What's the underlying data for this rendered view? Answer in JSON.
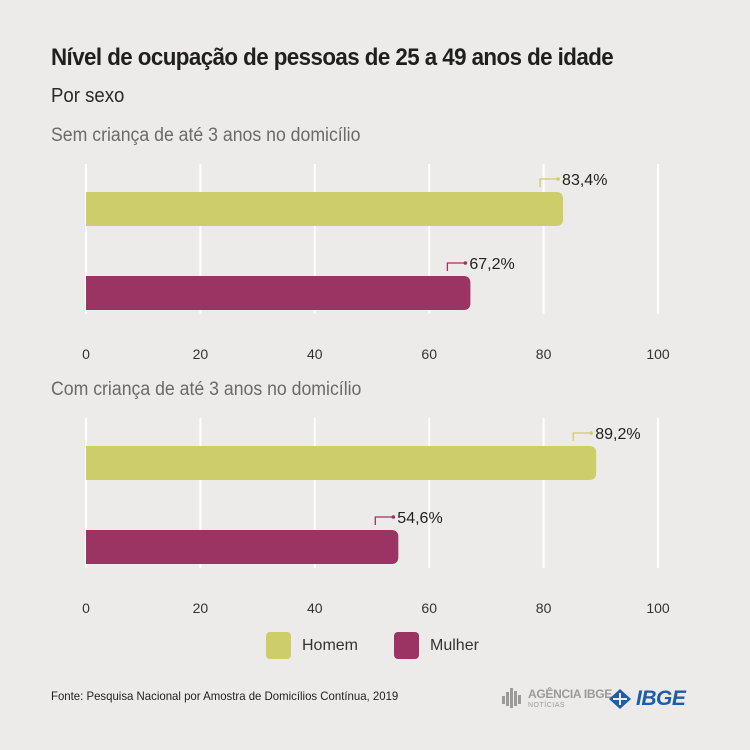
{
  "title": "Nível de ocupação de pessoas de 25 a 49 anos de idade",
  "subtitle": "Por sexo",
  "colors": {
    "homem": "#cdcd6a",
    "mulher": "#9b3363",
    "grid": "#ffffff",
    "background": "#ecebe9"
  },
  "chart_data": [
    {
      "type": "bar",
      "orientation": "horizontal",
      "title": "Sem criança de até 3 anos no domicílio",
      "categories": [
        "Homem",
        "Mulher"
      ],
      "values": [
        83.4,
        67.2
      ],
      "value_labels": [
        "83,4%",
        "67,2%"
      ],
      "xlim": [
        0,
        100
      ],
      "xticks": [
        0,
        20,
        40,
        60,
        80,
        100
      ],
      "xtick_labels": [
        "0",
        "20",
        "40",
        "60",
        "80",
        "100"
      ],
      "grid": true
    },
    {
      "type": "bar",
      "orientation": "horizontal",
      "title": "Com criança de até 3 anos no domicílio",
      "categories": [
        "Homem",
        "Mulher"
      ],
      "values": [
        89.2,
        54.6
      ],
      "value_labels": [
        "89,2%",
        "54,6%"
      ],
      "xlim": [
        0,
        100
      ],
      "xticks": [
        0,
        20,
        40,
        60,
        80,
        100
      ],
      "xtick_labels": [
        "0",
        "20",
        "40",
        "60",
        "80",
        "100"
      ],
      "grid": true
    }
  ],
  "legend": [
    {
      "label": "Homem",
      "color": "#cdcd6a",
      "icon": "color-swatch"
    },
    {
      "label": "Mulher",
      "color": "#9b3363",
      "icon": "color-swatch"
    }
  ],
  "source": "Fonte: Pesquisa Nacional por Amostra de Domicílios Contínua, 2019",
  "logos": {
    "agencia_main": "AGÊNCIA IBGE",
    "agencia_sub": "NOTÍCIAS",
    "ibge": "IBGE"
  }
}
